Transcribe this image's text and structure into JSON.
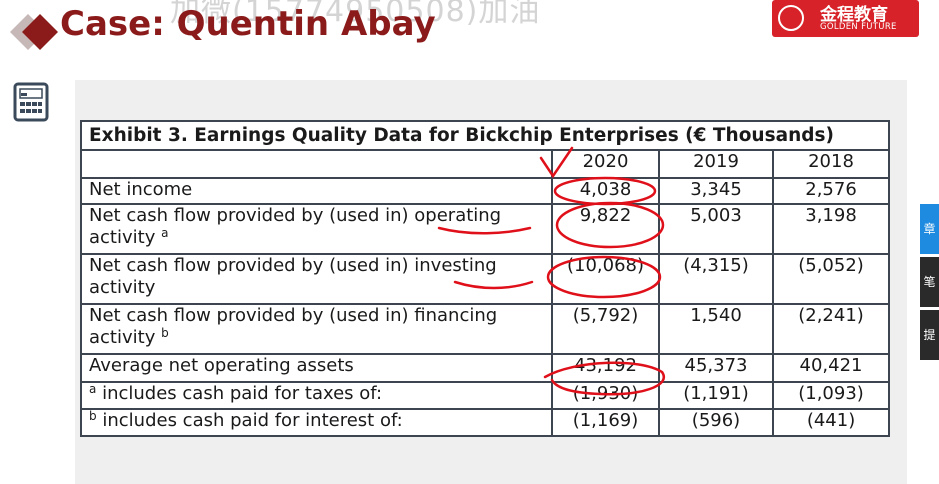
{
  "watermark": "加微(15774950508)加油",
  "title": "Case: Quentin Abay",
  "brand": {
    "cn": "金程教育",
    "en": "GOLDEN FUTURE"
  },
  "calculator_icon": "calculator-icon",
  "colors": {
    "title": "#8b1a1a",
    "brand": "#d62228",
    "ink": "#e0101a"
  },
  "exhibit": {
    "caption": "Exhibit 3. Earnings Quality Data for Bickchip Enterprises (€ Thousands)",
    "years": [
      "2020",
      "2019",
      "2018"
    ],
    "rows": [
      {
        "label": "Net income",
        "sup": "",
        "values": [
          "4,038",
          "3,345",
          "2,576"
        ]
      },
      {
        "label": "Net cash flow provided by (used in) operating activity",
        "sup": "a",
        "values": [
          "9,822",
          "5,003",
          "3,198"
        ]
      },
      {
        "label": "Net cash flow provided by (used in) investing activity",
        "sup": "",
        "values": [
          "(10,068)",
          "(4,315)",
          "(5,052)"
        ]
      },
      {
        "label": "Net cash flow provided by (used in) financing activity",
        "sup": "b",
        "values": [
          "(5,792)",
          "1,540",
          "(2,241)"
        ]
      },
      {
        "label": "Average net operating assets",
        "sup": "",
        "values": [
          "43,192",
          "45,373",
          "40,421"
        ]
      }
    ],
    "footnotes": [
      {
        "sup": "a",
        "label": "includes cash paid for taxes of:",
        "values": [
          "(1,930)",
          "(1,191)",
          "(1,093)"
        ]
      },
      {
        "sup": "b",
        "label": "includes cash paid for interest of:",
        "values": [
          "(1,169)",
          "(596)",
          "(441)"
        ]
      }
    ]
  },
  "side_tabs": [
    "章",
    "笔",
    "提"
  ]
}
